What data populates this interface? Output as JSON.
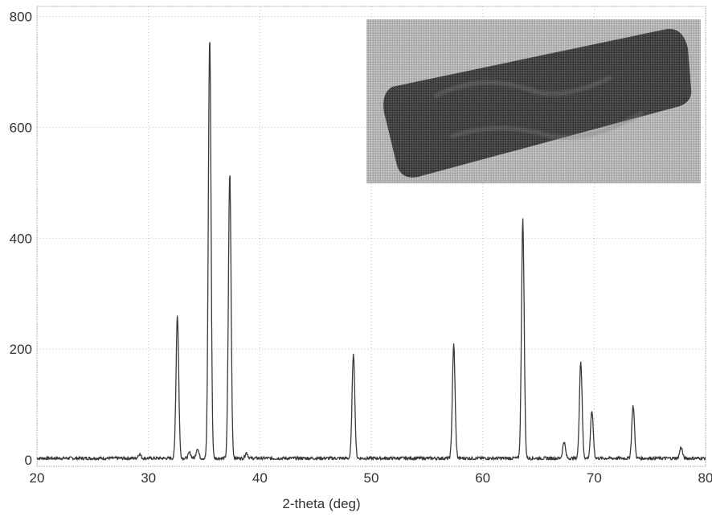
{
  "chart_data": {
    "type": "line",
    "xlabel": "2-theta (deg)",
    "ylabel": "",
    "xlim": [
      20,
      80
    ],
    "ylim": [
      0,
      830
    ],
    "x_ticks": [
      "20",
      "30",
      "40",
      "50",
      "60",
      "70",
      "80"
    ],
    "y_ticks": [
      "0",
      "200",
      "400",
      "600",
      "800"
    ],
    "grid": true,
    "legend": "none",
    "inset": "photograph of the sample (top-right)",
    "series": [
      {
        "baseline": 3,
        "line_color": "#3a3a3a",
        "peaks": [
          {
            "x": 29.2,
            "y": 8
          },
          {
            "x": 32.6,
            "y": 258
          },
          {
            "x": 33.7,
            "y": 10
          },
          {
            "x": 34.4,
            "y": 18
          },
          {
            "x": 35.5,
            "y": 760
          },
          {
            "x": 37.3,
            "y": 515
          },
          {
            "x": 38.8,
            "y": 10
          },
          {
            "x": 48.4,
            "y": 190
          },
          {
            "x": 57.4,
            "y": 205
          },
          {
            "x": 63.6,
            "y": 430
          },
          {
            "x": 67.3,
            "y": 30
          },
          {
            "x": 68.8,
            "y": 175
          },
          {
            "x": 69.8,
            "y": 85
          },
          {
            "x": 73.5,
            "y": 95
          },
          {
            "x": 77.8,
            "y": 20
          }
        ]
      }
    ]
  }
}
